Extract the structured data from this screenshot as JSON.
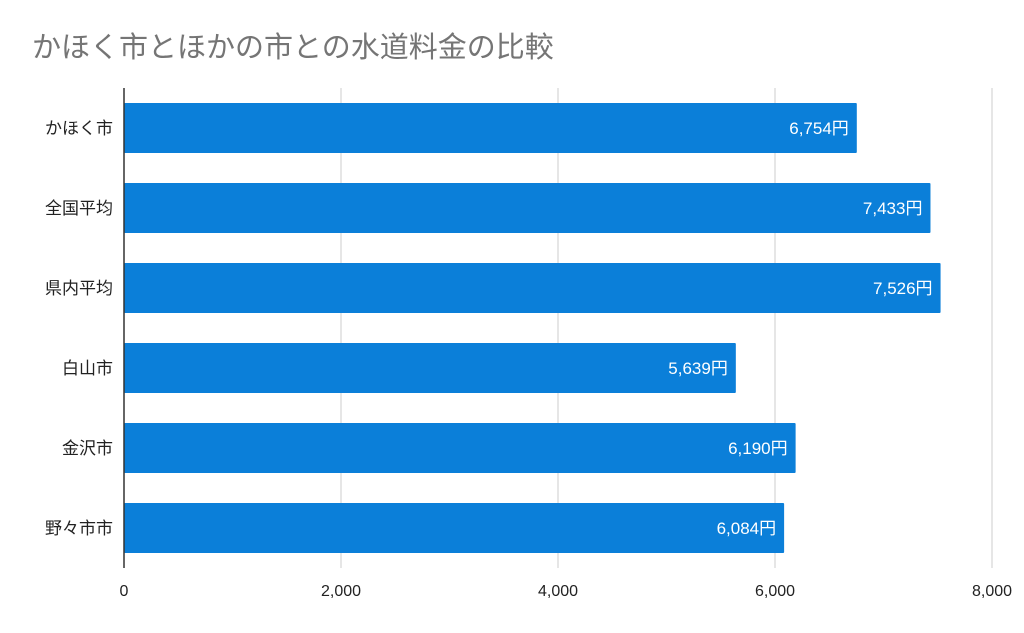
{
  "chart_data": {
    "type": "bar",
    "orientation": "horizontal",
    "title": "かほく市とほかの市との水道料金の比較",
    "categories": [
      "かほく市",
      "全国平均",
      "県内平均",
      "白山市",
      "金沢市",
      "野々市市"
    ],
    "values": [
      6754,
      7433,
      7526,
      5639,
      6190,
      6084
    ],
    "data_labels": [
      "6,754円",
      "7,433円",
      "7,526円",
      "5,639円",
      "6,190円",
      "6,084円"
    ],
    "xlim": [
      0,
      8000
    ],
    "xticks": [
      0,
      2000,
      4000,
      6000,
      8000
    ],
    "xtick_labels": [
      "0",
      "2,000",
      "4,000",
      "6,000",
      "8,000"
    ],
    "xlabel": "",
    "ylabel": "",
    "grid": true,
    "legend": "none",
    "bar_color": "#0b7fd9"
  }
}
